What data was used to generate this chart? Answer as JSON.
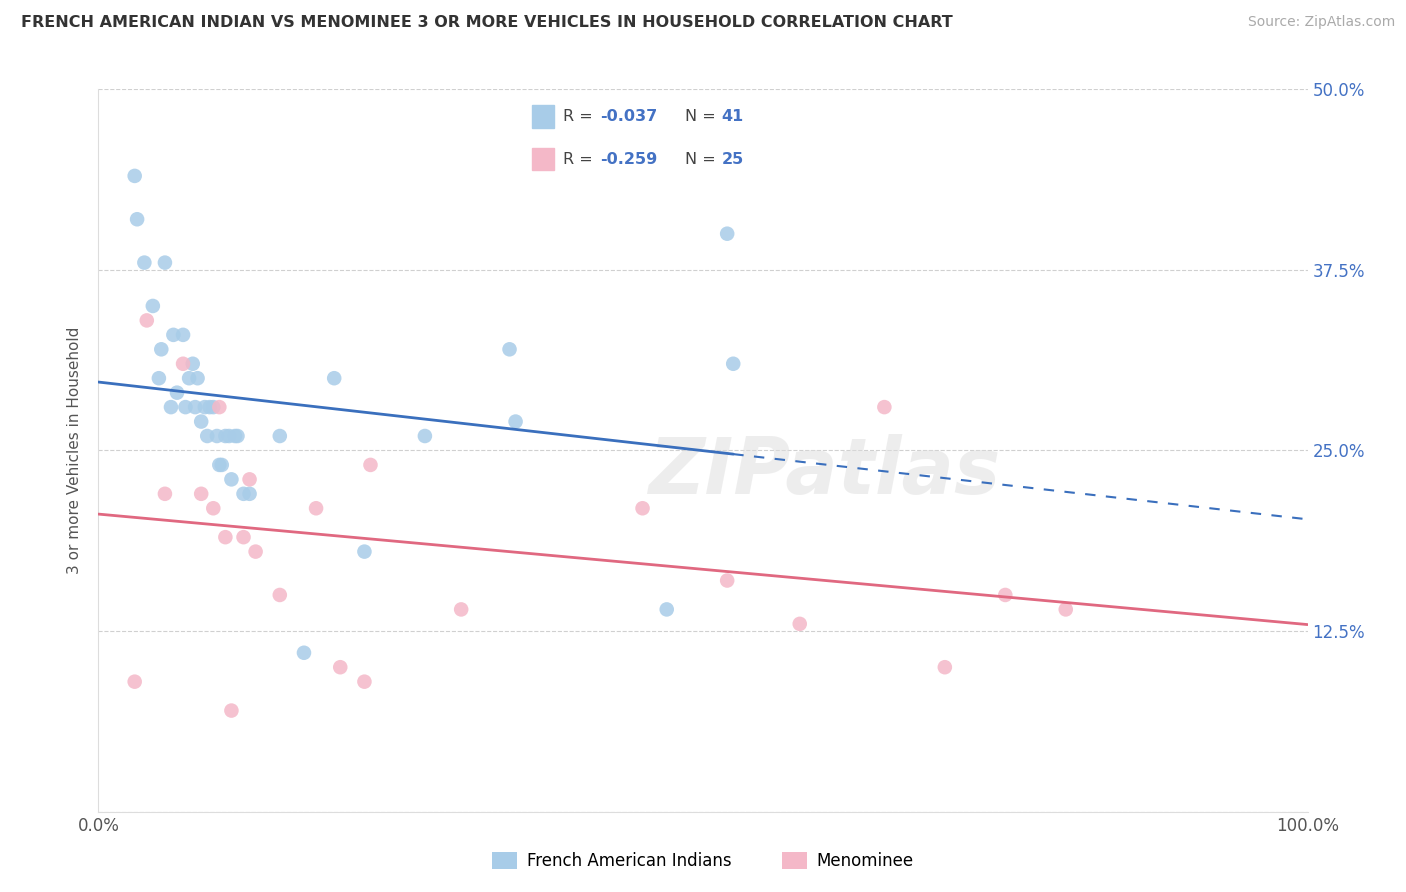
{
  "title": "FRENCH AMERICAN INDIAN VS MENOMINEE 3 OR MORE VEHICLES IN HOUSEHOLD CORRELATION CHART",
  "source": "Source: ZipAtlas.com",
  "ylabel": "3 or more Vehicles in Household",
  "xlim": [
    0,
    100
  ],
  "ylim": [
    0,
    50
  ],
  "yticks": [
    0,
    12.5,
    25.0,
    37.5,
    50.0
  ],
  "xticks": [
    0,
    25,
    50,
    75,
    100
  ],
  "xtick_labels": [
    "0.0%",
    "",
    "",
    "",
    "100.0%"
  ],
  "ytick_labels": [
    "",
    "12.5%",
    "25.0%",
    "37.5%",
    "50.0%"
  ],
  "legend_blue_R": "-0.037",
  "legend_blue_N": "41",
  "legend_pink_R": "-0.259",
  "legend_pink_N": "25",
  "legend_blue_label": "French American Indians",
  "legend_pink_label": "Menominee",
  "blue_color": "#a8cce8",
  "pink_color": "#f4b8c8",
  "blue_line_color": "#3a6fbd",
  "pink_line_color": "#e06880",
  "blue_scatter_x": [
    3,
    3.2,
    3.8,
    4.5,
    5.0,
    5.2,
    5.5,
    6.0,
    6.2,
    6.5,
    7.0,
    7.2,
    7.5,
    7.8,
    8.0,
    8.2,
    8.5,
    8.8,
    9.0,
    9.2,
    9.5,
    9.8,
    10.0,
    10.2,
    10.5,
    10.8,
    11.0,
    11.3,
    11.5,
    12.0,
    12.5,
    15.0,
    17.0,
    19.5,
    22.0,
    27.0,
    34.0,
    47.0,
    52.0,
    52.5,
    34.5
  ],
  "blue_scatter_y": [
    44,
    41,
    38,
    35,
    30,
    32,
    38,
    28,
    33,
    29,
    33,
    28,
    30,
    31,
    28,
    30,
    27,
    28,
    26,
    28,
    28,
    26,
    24,
    24,
    26,
    26,
    23,
    26,
    26,
    22,
    22,
    26,
    11,
    30,
    18,
    26,
    32,
    14,
    40,
    31,
    27
  ],
  "pink_scatter_x": [
    3,
    4,
    5.5,
    7,
    8.5,
    9.5,
    10,
    11,
    12,
    12.5,
    13,
    15,
    18,
    20,
    22,
    22.5,
    30,
    45,
    52,
    58,
    65,
    70,
    75,
    80,
    10.5
  ],
  "pink_scatter_y": [
    9,
    34,
    22,
    31,
    22,
    21,
    28,
    7,
    19,
    23,
    18,
    15,
    21,
    10,
    9,
    24,
    14,
    21,
    16,
    13,
    28,
    10,
    15,
    14,
    19
  ],
  "watermark": "ZIPatlas",
  "background_color": "#ffffff",
  "grid_color": "#d0d0d0"
}
